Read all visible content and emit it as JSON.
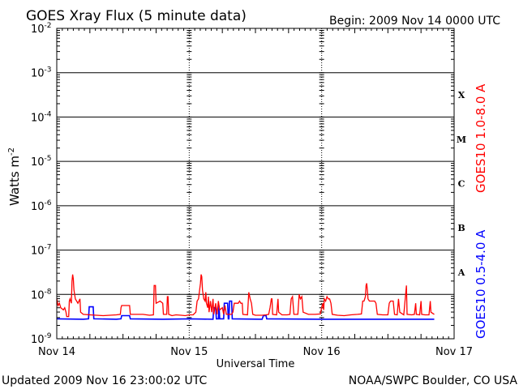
{
  "chart_data": {
    "type": "line",
    "title": "GOES Xray Flux (5 minute data)",
    "begin_label": "Begin:  2009 Nov 14 0000 UTC",
    "xlabel": "Universal Time",
    "ylabel": "Watts m",
    "ylabel_exponent": "-2",
    "y_scale": "log",
    "ylim": [
      1e-09,
      0.01
    ],
    "x_range_days": [
      0,
      3
    ],
    "x_ticks": [
      {
        "day": 0,
        "label": "Nov 14"
      },
      {
        "day": 1,
        "label": "Nov 15"
      },
      {
        "day": 2,
        "label": "Nov 16"
      },
      {
        "day": 3,
        "label": "Nov 17"
      }
    ],
    "y_ticks": [
      {
        "exp": -2,
        "base": "10",
        "sup": "-2"
      },
      {
        "exp": -3,
        "base": "10",
        "sup": "-3"
      },
      {
        "exp": -4,
        "base": "10",
        "sup": "-4"
      },
      {
        "exp": -5,
        "base": "10",
        "sup": "-5"
      },
      {
        "exp": -6,
        "base": "10",
        "sup": "-6"
      },
      {
        "exp": -7,
        "base": "10",
        "sup": "-7"
      },
      {
        "exp": -8,
        "base": "10",
        "sup": "-8"
      },
      {
        "exp": -9,
        "base": "10",
        "sup": "-9"
      }
    ],
    "flare_classes": [
      {
        "label": "X",
        "exp": -4
      },
      {
        "label": "M",
        "exp": -5
      },
      {
        "label": "C",
        "exp": -6
      },
      {
        "label": "B",
        "exp": -7
      },
      {
        "label": "A",
        "exp": -8
      }
    ],
    "grid": "horizontal lines at each decade, dotted vertical day separators",
    "series": [
      {
        "name": "GOES10 1.0-8.0 A",
        "color": "#ff0000",
        "points": [
          [
            0.0,
            -8.1
          ],
          [
            0.01,
            -8.25
          ],
          [
            0.02,
            -8.2
          ],
          [
            0.03,
            -8.3
          ],
          [
            0.05,
            -8.35
          ],
          [
            0.06,
            -8.3
          ],
          [
            0.07,
            -8.4
          ],
          [
            0.075,
            -8.5
          ],
          [
            0.09,
            -8.5
          ],
          [
            0.095,
            -8.15
          ],
          [
            0.1,
            -8.1
          ],
          [
            0.11,
            -8.2
          ],
          [
            0.115,
            -7.7
          ],
          [
            0.12,
            -7.55
          ],
          [
            0.125,
            -7.65
          ],
          [
            0.13,
            -7.9
          ],
          [
            0.14,
            -8.1
          ],
          [
            0.15,
            -8.15
          ],
          [
            0.16,
            -8.2
          ],
          [
            0.175,
            -8.1
          ],
          [
            0.18,
            -8.4
          ],
          [
            0.2,
            -8.45
          ],
          [
            0.25,
            -8.46
          ],
          [
            0.3,
            -8.47
          ],
          [
            0.35,
            -8.48
          ],
          [
            0.4,
            -8.47
          ],
          [
            0.45,
            -8.46
          ],
          [
            0.48,
            -8.45
          ],
          [
            0.485,
            -8.3
          ],
          [
            0.49,
            -8.25
          ],
          [
            0.55,
            -8.25
          ],
          [
            0.555,
            -8.45
          ],
          [
            0.65,
            -8.45
          ],
          [
            0.7,
            -8.47
          ],
          [
            0.73,
            -8.46
          ],
          [
            0.735,
            -7.8
          ],
          [
            0.745,
            -7.8
          ],
          [
            0.75,
            -8.2
          ],
          [
            0.78,
            -8.15
          ],
          [
            0.8,
            -8.2
          ],
          [
            0.805,
            -8.45
          ],
          [
            0.83,
            -8.45
          ],
          [
            0.835,
            -8.05
          ],
          [
            0.84,
            -8.05
          ],
          [
            0.845,
            -8.45
          ],
          [
            0.87,
            -8.48
          ],
          [
            0.9,
            -8.46
          ],
          [
            0.94,
            -8.47
          ],
          [
            0.97,
            -8.48
          ],
          [
            1.0,
            -8.46
          ],
          [
            1.03,
            -8.46
          ],
          [
            1.05,
            -8.4
          ],
          [
            1.06,
            -8.15
          ],
          [
            1.07,
            -8.1
          ],
          [
            1.085,
            -7.75
          ],
          [
            1.09,
            -7.55
          ],
          [
            1.095,
            -7.6
          ],
          [
            1.1,
            -7.9
          ],
          [
            1.11,
            -8.1
          ],
          [
            1.12,
            -8.15
          ],
          [
            1.125,
            -7.95
          ],
          [
            1.13,
            -8.2
          ],
          [
            1.14,
            -8.3
          ],
          [
            1.145,
            -8.05
          ],
          [
            1.15,
            -8.4
          ],
          [
            1.16,
            -8.15
          ],
          [
            1.17,
            -8.4
          ],
          [
            1.18,
            -8.1
          ],
          [
            1.185,
            -8.45
          ],
          [
            1.2,
            -8.2
          ],
          [
            1.21,
            -8.45
          ],
          [
            1.22,
            -8.15
          ],
          [
            1.23,
            -8.35
          ],
          [
            1.25,
            -8.3
          ],
          [
            1.26,
            -8.45
          ],
          [
            1.27,
            -8.25
          ],
          [
            1.28,
            -8.45
          ],
          [
            1.3,
            -8.45
          ],
          [
            1.32,
            -8.45
          ],
          [
            1.33,
            -8.4
          ],
          [
            1.34,
            -8.2
          ],
          [
            1.37,
            -8.2
          ],
          [
            1.38,
            -8.15
          ],
          [
            1.39,
            -8.2
          ],
          [
            1.4,
            -8.2
          ],
          [
            1.405,
            -8.45
          ],
          [
            1.44,
            -8.46
          ],
          [
            1.45,
            -7.95
          ],
          [
            1.46,
            -8.1
          ],
          [
            1.47,
            -8.2
          ],
          [
            1.48,
            -8.45
          ],
          [
            1.5,
            -8.47
          ],
          [
            1.55,
            -8.47
          ],
          [
            1.58,
            -8.46
          ],
          [
            1.6,
            -8.45
          ],
          [
            1.61,
            -8.3
          ],
          [
            1.62,
            -8.1
          ],
          [
            1.625,
            -8.1
          ],
          [
            1.63,
            -8.45
          ],
          [
            1.66,
            -8.46
          ],
          [
            1.67,
            -8.1
          ],
          [
            1.675,
            -8.4
          ],
          [
            1.7,
            -8.46
          ],
          [
            1.74,
            -8.46
          ],
          [
            1.76,
            -8.45
          ],
          [
            1.77,
            -8.1
          ],
          [
            1.78,
            -8.05
          ],
          [
            1.79,
            -8.45
          ],
          [
            1.82,
            -8.45
          ],
          [
            1.83,
            -8.0
          ],
          [
            1.84,
            -8.1
          ],
          [
            1.85,
            -8.05
          ],
          [
            1.86,
            -8.4
          ],
          [
            1.9,
            -8.45
          ],
          [
            1.95,
            -8.45
          ],
          [
            1.99,
            -8.44
          ],
          [
            2.0,
            -8.3
          ],
          [
            2.01,
            -8.2
          ],
          [
            2.015,
            -8.35
          ],
          [
            2.02,
            -8.1
          ],
          [
            2.03,
            -8.15
          ],
          [
            2.04,
            -8.05
          ],
          [
            2.05,
            -8.1
          ],
          [
            2.06,
            -8.1
          ],
          [
            2.07,
            -8.2
          ],
          [
            2.08,
            -8.45
          ],
          [
            2.12,
            -8.47
          ],
          [
            2.17,
            -8.48
          ],
          [
            2.22,
            -8.46
          ],
          [
            2.27,
            -8.45
          ],
          [
            2.3,
            -8.44
          ],
          [
            2.31,
            -8.15
          ],
          [
            2.32,
            -8.15
          ],
          [
            2.33,
            -8.05
          ],
          [
            2.335,
            -7.8
          ],
          [
            2.34,
            -7.75
          ],
          [
            2.345,
            -7.9
          ],
          [
            2.35,
            -8.1
          ],
          [
            2.36,
            -8.15
          ],
          [
            2.4,
            -8.15
          ],
          [
            2.41,
            -8.2
          ],
          [
            2.42,
            -8.45
          ],
          [
            2.46,
            -8.46
          ],
          [
            2.5,
            -8.46
          ],
          [
            2.51,
            -8.2
          ],
          [
            2.52,
            -8.15
          ],
          [
            2.54,
            -8.15
          ],
          [
            2.55,
            -8.45
          ],
          [
            2.57,
            -8.46
          ],
          [
            2.58,
            -8.1
          ],
          [
            2.59,
            -8.4
          ],
          [
            2.62,
            -8.46
          ],
          [
            2.64,
            -7.8
          ],
          [
            2.645,
            -8.45
          ],
          [
            2.68,
            -8.46
          ],
          [
            2.7,
            -8.45
          ],
          [
            2.71,
            -8.2
          ],
          [
            2.715,
            -8.45
          ],
          [
            2.74,
            -8.46
          ],
          [
            2.75,
            -8.15
          ],
          [
            2.755,
            -8.45
          ],
          [
            2.78,
            -8.46
          ],
          [
            2.81,
            -8.46
          ],
          [
            2.82,
            -8.15
          ],
          [
            2.825,
            -8.4
          ],
          [
            2.85,
            -8.45
          ]
        ]
      },
      {
        "name": "GOES10 0.5-4.0 A",
        "color": "#0000ff",
        "points": [
          [
            0.0,
            -8.55
          ],
          [
            0.2,
            -8.56
          ],
          [
            0.24,
            -8.55
          ],
          [
            0.245,
            -8.28
          ],
          [
            0.275,
            -8.28
          ],
          [
            0.28,
            -8.55
          ],
          [
            0.45,
            -8.56
          ],
          [
            0.485,
            -8.55
          ],
          [
            0.49,
            -8.48
          ],
          [
            0.55,
            -8.48
          ],
          [
            0.555,
            -8.55
          ],
          [
            0.8,
            -8.56
          ],
          [
            1.0,
            -8.55
          ],
          [
            1.18,
            -8.56
          ],
          [
            1.185,
            -8.3
          ],
          [
            1.2,
            -8.3
          ],
          [
            1.205,
            -8.55
          ],
          [
            1.22,
            -8.55
          ],
          [
            1.225,
            -8.25
          ],
          [
            1.23,
            -8.55
          ],
          [
            1.26,
            -8.55
          ],
          [
            1.265,
            -8.2
          ],
          [
            1.29,
            -8.2
          ],
          [
            1.295,
            -8.55
          ],
          [
            1.3,
            -8.55
          ],
          [
            1.305,
            -8.15
          ],
          [
            1.32,
            -8.15
          ],
          [
            1.325,
            -8.55
          ],
          [
            1.55,
            -8.56
          ],
          [
            1.56,
            -8.48
          ],
          [
            1.58,
            -8.48
          ],
          [
            1.585,
            -8.55
          ],
          [
            2.0,
            -8.56
          ],
          [
            2.85,
            -8.56
          ]
        ]
      }
    ]
  },
  "footer": {
    "left": "Updated 2009 Nov 16 23:00:02 UTC",
    "right": "NOAA/SWPC Boulder, CO USA"
  }
}
